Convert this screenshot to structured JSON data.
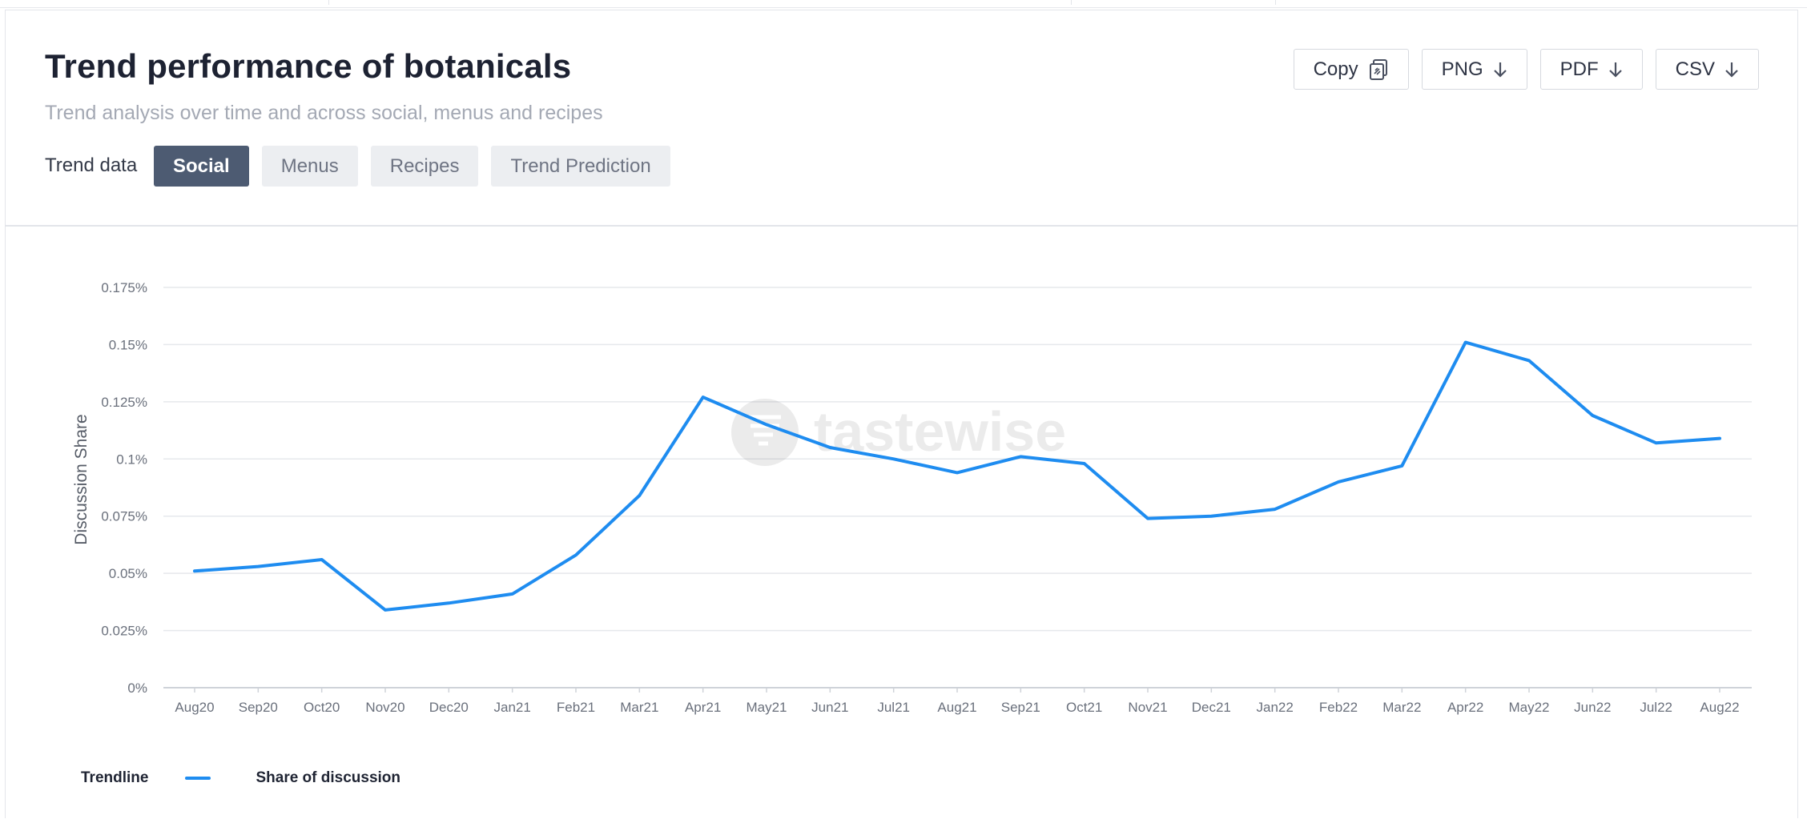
{
  "header": {
    "title": "Trend performance of botanicals",
    "subtitle": "Trend analysis over time and across social, menus and recipes",
    "trend_label": "Trend data",
    "tabs": [
      {
        "label": "Social",
        "active": true
      },
      {
        "label": "Menus",
        "active": false
      },
      {
        "label": "Recipes",
        "active": false
      },
      {
        "label": "Trend Prediction",
        "active": false
      }
    ],
    "actions": [
      {
        "label": "Copy",
        "icon": "copy-icon"
      },
      {
        "label": "PNG",
        "icon": "arrow-down-icon"
      },
      {
        "label": "PDF",
        "icon": "arrow-down-icon"
      },
      {
        "label": "CSV",
        "icon": "arrow-down-icon"
      }
    ]
  },
  "watermark": "tastewise",
  "colors": {
    "line": "#1e8cf0",
    "active_tab": "#4d5b72",
    "grid": "#e6e8ec"
  },
  "legend": {
    "title": "Trendline",
    "series_name": "Share of discussion"
  },
  "chart_data": {
    "type": "line",
    "title": "",
    "xlabel": "",
    "ylabel": "Discussion Share",
    "ylim": [
      0,
      0.175
    ],
    "yticks": [
      0,
      0.025,
      0.05,
      0.075,
      0.1,
      0.125,
      0.15,
      0.175
    ],
    "ytick_labels": [
      "0%",
      "0.025%",
      "0.05%",
      "0.075%",
      "0.1%",
      "0.125%",
      "0.15%",
      "0.175%"
    ],
    "grid": true,
    "categories": [
      "Aug20",
      "Sep20",
      "Oct20",
      "Nov20",
      "Dec20",
      "Jan21",
      "Feb21",
      "Mar21",
      "Apr21",
      "May21",
      "Jun21",
      "Jul21",
      "Aug21",
      "Sep21",
      "Oct21",
      "Nov21",
      "Dec21",
      "Jan22",
      "Feb22",
      "Mar22",
      "Apr22",
      "May22",
      "Jun22",
      "Jul22",
      "Aug22"
    ],
    "series": [
      {
        "name": "Share of discussion",
        "values": [
          0.051,
          0.053,
          0.056,
          0.034,
          0.037,
          0.041,
          0.058,
          0.084,
          0.127,
          0.115,
          0.105,
          0.1,
          0.094,
          0.101,
          0.098,
          0.074,
          0.075,
          0.078,
          0.09,
          0.097,
          0.151,
          0.143,
          0.119,
          0.107,
          0.109
        ]
      }
    ]
  }
}
